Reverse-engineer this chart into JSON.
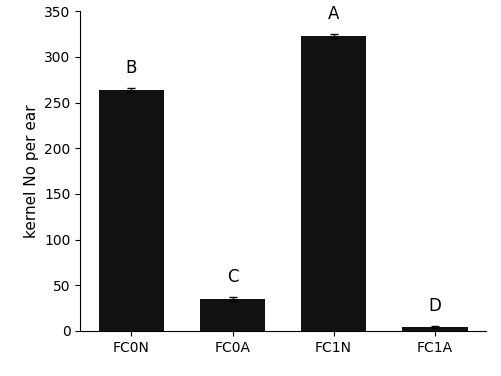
{
  "categories": [
    "FC0N",
    "FC0A",
    "FC1N",
    "FC1A"
  ],
  "values": [
    264,
    35,
    323,
    4
  ],
  "errors": [
    2,
    2,
    2,
    1
  ],
  "significance_labels": [
    "B",
    "C",
    "A",
    "D"
  ],
  "bar_color": "#111111",
  "ylabel": "kernel No per ear",
  "ylim": [
    0,
    350
  ],
  "yticks": [
    0,
    50,
    100,
    150,
    200,
    250,
    300,
    350
  ],
  "bar_width": 0.65,
  "label_fontsize": 11,
  "tick_fontsize": 10,
  "sig_fontsize": 12,
  "background_color": "#ffffff"
}
